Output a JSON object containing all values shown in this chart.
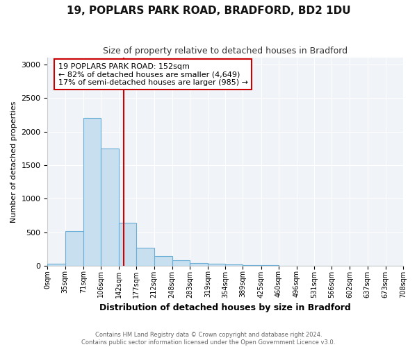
{
  "title": "19, POPLARS PARK ROAD, BRADFORD, BD2 1DU",
  "subtitle": "Size of property relative to detached houses in Bradford",
  "xlabel": "Distribution of detached houses by size in Bradford",
  "ylabel": "Number of detached properties",
  "categories": [
    "0sqm",
    "35sqm",
    "71sqm",
    "106sqm",
    "142sqm",
    "177sqm",
    "212sqm",
    "248sqm",
    "283sqm",
    "319sqm",
    "354sqm",
    "389sqm",
    "425sqm",
    "460sqm",
    "496sqm",
    "531sqm",
    "566sqm",
    "602sqm",
    "637sqm",
    "673sqm",
    "708sqm"
  ],
  "bar_heights": [
    35,
    520,
    2200,
    1750,
    640,
    270,
    140,
    80,
    45,
    30,
    22,
    12,
    8,
    5,
    3,
    2,
    2,
    1,
    1,
    1,
    0
  ],
  "bar_color": "#c8dff0",
  "bar_edge_color": "#6aaed6",
  "ylim": [
    0,
    3100
  ],
  "yticks": [
    0,
    500,
    1000,
    1500,
    2000,
    2500,
    3000
  ],
  "vline_x": 152,
  "vline_color": "#cc0000",
  "annotation_line1": "19 POPLARS PARK ROAD: 152sqm",
  "annotation_line2": "← 82% of detached houses are smaller (4,649)",
  "annotation_line3": "17% of semi-detached houses are larger (985) →",
  "annotation_box_color": "#cc0000",
  "footer_line1": "Contains HM Land Registry data © Crown copyright and database right 2024.",
  "footer_line2": "Contains public sector information licensed under the Open Government Licence v3.0.",
  "bg_color": "#ffffff",
  "plot_bg_color": "#f0f4f8",
  "grid_color": "#ffffff",
  "bin_edges": [
    0,
    35,
    71,
    106,
    142,
    177,
    212,
    248,
    283,
    319,
    354,
    389,
    425,
    460,
    496,
    531,
    566,
    602,
    637,
    673,
    708
  ]
}
